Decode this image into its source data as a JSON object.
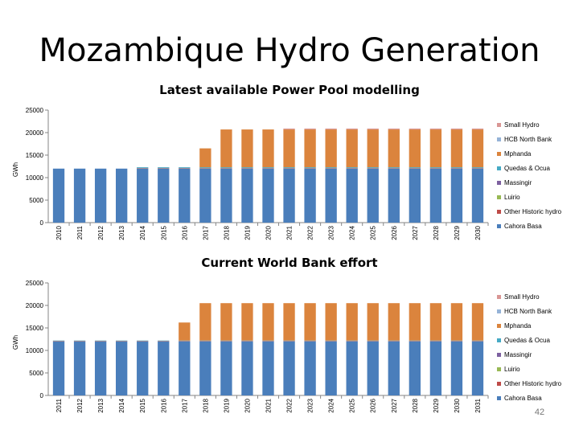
{
  "slide": {
    "title": "Mozambique Hydro Generation",
    "page_number": "42"
  },
  "chart_data": [
    {
      "type": "bar",
      "stacked": true,
      "title": "Latest available Power Pool modelling",
      "ylabel": "GWh",
      "xlabel": "",
      "ylim": [
        0,
        25000
      ],
      "yticks": [
        0,
        5000,
        10000,
        15000,
        20000,
        25000
      ],
      "grid": false,
      "legend_position": "right",
      "categories": [
        "2010",
        "2011",
        "2012",
        "2013",
        "2014",
        "2015",
        "2016",
        "2017",
        "2018",
        "2019",
        "2020",
        "2021",
        "2022",
        "2023",
        "2024",
        "2025",
        "2026",
        "2027",
        "2028",
        "2029",
        "2030"
      ],
      "series": [
        {
          "name": "Cahora Basa",
          "color": "#4a7ebb",
          "values": [
            12000,
            12000,
            12000,
            12000,
            12000,
            12000,
            12000,
            12000,
            12000,
            12000,
            12000,
            12000,
            12000,
            12000,
            12000,
            12000,
            12000,
            12000,
            12000,
            12000,
            12000
          ]
        },
        {
          "name": "Other Historic hydro",
          "color": "#be4b48",
          "values": [
            0,
            0,
            0,
            0,
            100,
            100,
            100,
            100,
            100,
            100,
            100,
            100,
            100,
            100,
            100,
            100,
            100,
            100,
            100,
            100,
            100
          ]
        },
        {
          "name": "Luirio",
          "color": "#98b954",
          "values": [
            0,
            0,
            0,
            0,
            0,
            0,
            0,
            0,
            0,
            0,
            0,
            0,
            0,
            0,
            0,
            0,
            0,
            0,
            0,
            0,
            0
          ]
        },
        {
          "name": "Massingir",
          "color": "#7d60a0",
          "values": [
            0,
            0,
            0,
            0,
            0,
            0,
            0,
            0,
            0,
            0,
            0,
            0,
            0,
            0,
            0,
            0,
            0,
            0,
            0,
            0,
            0
          ]
        },
        {
          "name": "Quedas & Ocua",
          "color": "#46aac5",
          "values": [
            0,
            0,
            0,
            0,
            200,
            200,
            200,
            200,
            200,
            200,
            200,
            200,
            200,
            200,
            200,
            200,
            200,
            200,
            200,
            200,
            200
          ]
        },
        {
          "name": "Mphanda",
          "color": "#db843d",
          "values": [
            0,
            0,
            0,
            0,
            0,
            0,
            0,
            4200,
            8400,
            8400,
            8400,
            8400,
            8400,
            8400,
            8400,
            8400,
            8400,
            8400,
            8400,
            8400,
            8400
          ]
        },
        {
          "name": "HCB North Bank",
          "color": "#95b3d7",
          "values": [
            0,
            0,
            0,
            0,
            0,
            0,
            0,
            0,
            0,
            0,
            0,
            0,
            0,
            0,
            0,
            0,
            0,
            0,
            0,
            0,
            0
          ]
        },
        {
          "name": "Small Hydro",
          "color": "#d99694",
          "values": [
            0,
            0,
            0,
            0,
            0,
            0,
            0,
            0,
            0,
            0,
            0,
            200,
            200,
            200,
            200,
            200,
            200,
            200,
            200,
            200,
            200
          ]
        }
      ]
    },
    {
      "type": "bar",
      "stacked": true,
      "title": "Current World Bank effort",
      "ylabel": "GWh",
      "xlabel": "",
      "ylim": [
        0,
        25000
      ],
      "yticks": [
        0,
        5000,
        10000,
        15000,
        20000,
        25000
      ],
      "grid": false,
      "legend_position": "right",
      "categories": [
        "2011",
        "2012",
        "2013",
        "2014",
        "2015",
        "2016",
        "2017",
        "2018",
        "2019",
        "2020",
        "2021",
        "2022",
        "2023",
        "2024",
        "2025",
        "2026",
        "2027",
        "2028",
        "2029",
        "2030",
        "2031"
      ],
      "series": [
        {
          "name": "Cahora Basa",
          "color": "#4a7ebb",
          "values": [
            12000,
            12000,
            12000,
            12000,
            12000,
            12000,
            12000,
            12000,
            12000,
            12000,
            12000,
            12000,
            12000,
            12000,
            12000,
            12000,
            12000,
            12000,
            12000,
            12000,
            12000
          ]
        },
        {
          "name": "Other Historic hydro",
          "color": "#be4b48",
          "values": [
            100,
            100,
            100,
            100,
            100,
            100,
            100,
            100,
            100,
            100,
            100,
            100,
            100,
            100,
            100,
            100,
            100,
            100,
            100,
            100,
            100
          ]
        },
        {
          "name": "Luirio",
          "color": "#98b954",
          "values": [
            0,
            0,
            0,
            0,
            0,
            0,
            0,
            0,
            0,
            0,
            0,
            0,
            0,
            0,
            0,
            0,
            0,
            0,
            0,
            0,
            0
          ]
        },
        {
          "name": "Massingir",
          "color": "#7d60a0",
          "values": [
            0,
            0,
            0,
            0,
            0,
            0,
            0,
            0,
            0,
            0,
            0,
            0,
            0,
            0,
            0,
            0,
            0,
            0,
            0,
            0,
            0
          ]
        },
        {
          "name": "Quedas & Ocua",
          "color": "#46aac5",
          "values": [
            100,
            100,
            100,
            100,
            100,
            100,
            100,
            100,
            100,
            100,
            100,
            100,
            100,
            100,
            100,
            100,
            100,
            100,
            100,
            100,
            100
          ]
        },
        {
          "name": "Mphanda",
          "color": "#db843d",
          "values": [
            0,
            0,
            0,
            0,
            0,
            0,
            4000,
            8300,
            8300,
            8300,
            8300,
            8300,
            8300,
            8300,
            8300,
            8300,
            8300,
            8300,
            8300,
            8300,
            8300
          ]
        },
        {
          "name": "HCB North Bank",
          "color": "#95b3d7",
          "values": [
            0,
            0,
            0,
            0,
            0,
            0,
            0,
            0,
            0,
            0,
            0,
            0,
            0,
            0,
            0,
            0,
            0,
            0,
            0,
            0,
            0
          ]
        },
        {
          "name": "Small Hydro",
          "color": "#d99694",
          "values": [
            0,
            0,
            0,
            0,
            0,
            0,
            0,
            0,
            0,
            0,
            0,
            0,
            0,
            0,
            0,
            0,
            0,
            0,
            0,
            0,
            0
          ]
        }
      ]
    }
  ]
}
